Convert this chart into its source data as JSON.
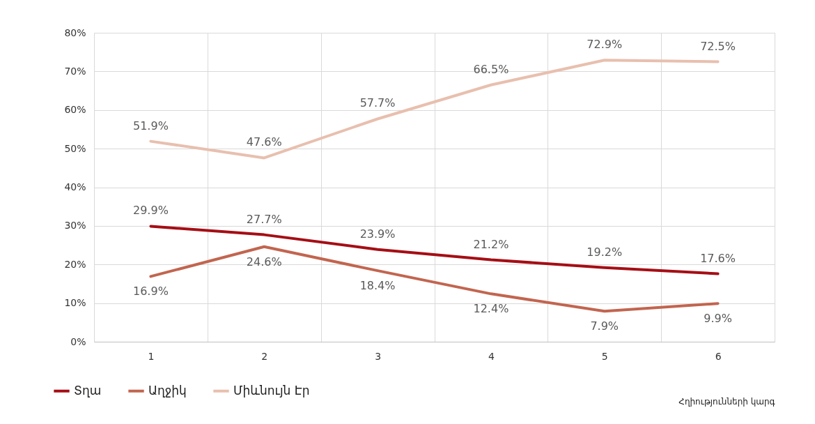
{
  "chart_data": {
    "type": "line",
    "categories": [
      "1",
      "2",
      "3",
      "4",
      "5",
      "6"
    ],
    "xlabel": "Հղիությունների կարգ",
    "series": [
      {
        "name": "Տղա",
        "color": "#a50e15",
        "values": [
          29.9,
          27.7,
          23.9,
          21.2,
          19.2,
          17.6
        ],
        "value_labels": [
          "29.9%",
          "27.7%",
          "23.9%",
          "21.2%",
          "19.2%",
          "17.6%"
        ]
      },
      {
        "name": "Աղջիկ",
        "color": "#c2654f",
        "values": [
          16.9,
          24.6,
          18.4,
          12.4,
          7.9,
          9.9
        ],
        "value_labels": [
          "16.9%",
          "24.6%",
          "18.4%",
          "12.4%",
          "7.9%",
          "9.9%"
        ]
      },
      {
        "name": "Միևնույն Էր",
        "color": "#e8bfae",
        "values": [
          51.9,
          47.6,
          57.7,
          66.5,
          72.9,
          72.5
        ],
        "value_labels": [
          "51.9%",
          "47.6%",
          "57.7%",
          "66.5%",
          "72.9%",
          "72.5%"
        ]
      }
    ],
    "ylim": [
      0,
      80
    ],
    "yticks": [
      {
        "value": 0,
        "label": "0%"
      },
      {
        "value": 10,
        "label": "10%"
      },
      {
        "value": 20,
        "label": "20%"
      },
      {
        "value": 30,
        "label": "30%"
      },
      {
        "value": 40,
        "label": "40%"
      },
      {
        "value": 50,
        "label": "50%"
      },
      {
        "value": 60,
        "label": "60%"
      },
      {
        "value": 70,
        "label": "70%"
      },
      {
        "value": 80,
        "label": "80%"
      }
    ],
    "grid": true,
    "legend": "bottom left",
    "marker": "none",
    "line_style": "solid"
  }
}
